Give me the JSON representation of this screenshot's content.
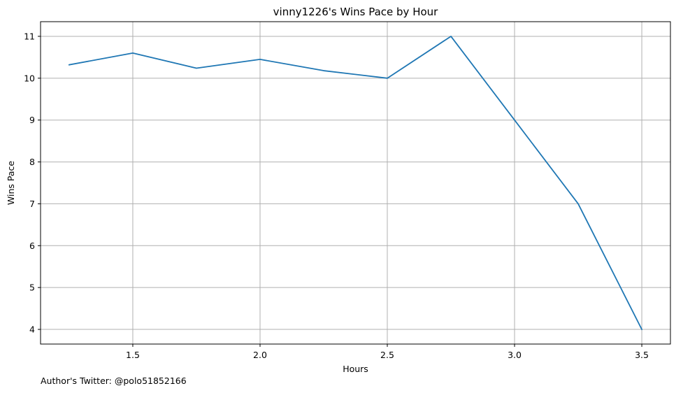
{
  "chart_data": {
    "type": "line",
    "title": "vinny1226's Wins Pace by Hour",
    "xlabel": "Hours",
    "ylabel": "Wins Pace",
    "x": [
      1.25,
      1.5,
      1.75,
      2.0,
      2.25,
      2.5,
      2.75,
      3.0,
      3.25,
      3.5
    ],
    "series": [
      {
        "values": [
          10.32,
          10.6,
          10.24,
          10.45,
          10.18,
          10.0,
          11.0,
          9.0,
          7.0,
          4.0
        ],
        "color": "#1f77b4"
      }
    ],
    "xlim": [
      1.1375,
      3.6125
    ],
    "ylim": [
      3.65,
      11.35
    ],
    "xticks": [
      1.5,
      2.0,
      2.5,
      3.0,
      3.5
    ],
    "xtick_labels": [
      "1.5",
      "2.0",
      "2.5",
      "3.0",
      "3.5"
    ],
    "yticks": [
      4,
      5,
      6,
      7,
      8,
      9,
      10,
      11
    ],
    "ytick_labels": [
      "4",
      "5",
      "6",
      "7",
      "8",
      "9",
      "10",
      "11"
    ],
    "grid": true,
    "grid_color": "#b0b0b0"
  },
  "footer": {
    "note": "Author's Twitter: @polo51852166"
  }
}
